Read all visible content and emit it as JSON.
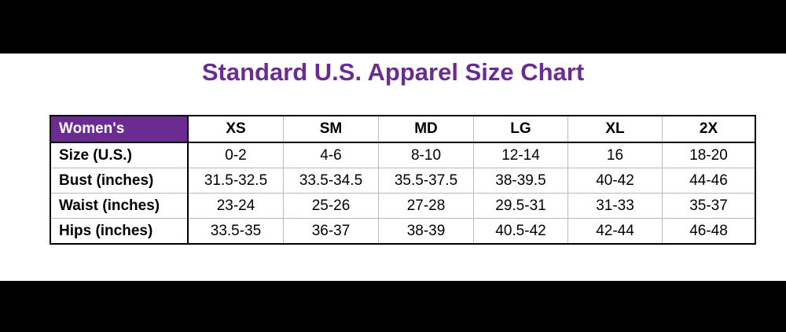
{
  "title": "Standard U.S. Apparel Size Chart",
  "table": {
    "header": [
      "Women's",
      "XS",
      "SM",
      "MD",
      "LG",
      "XL",
      "2X"
    ],
    "rows": [
      [
        "Size (U.S.)",
        "0-2",
        "4-6",
        "8-10",
        "12-14",
        "16",
        "18-20"
      ],
      [
        "Bust (inches)",
        "31.5-32.5",
        "33.5-34.5",
        "35.5-37.5",
        "38-39.5",
        "40-42",
        "44-46"
      ],
      [
        "Waist (inches)",
        "23-24",
        "25-26",
        "27-28",
        "29.5-31",
        "31-33",
        "35-37"
      ],
      [
        "Hips (inches)",
        "33.5-35",
        "36-37",
        "38-39",
        "40.5-42",
        "42-44",
        "46-48"
      ]
    ]
  }
}
